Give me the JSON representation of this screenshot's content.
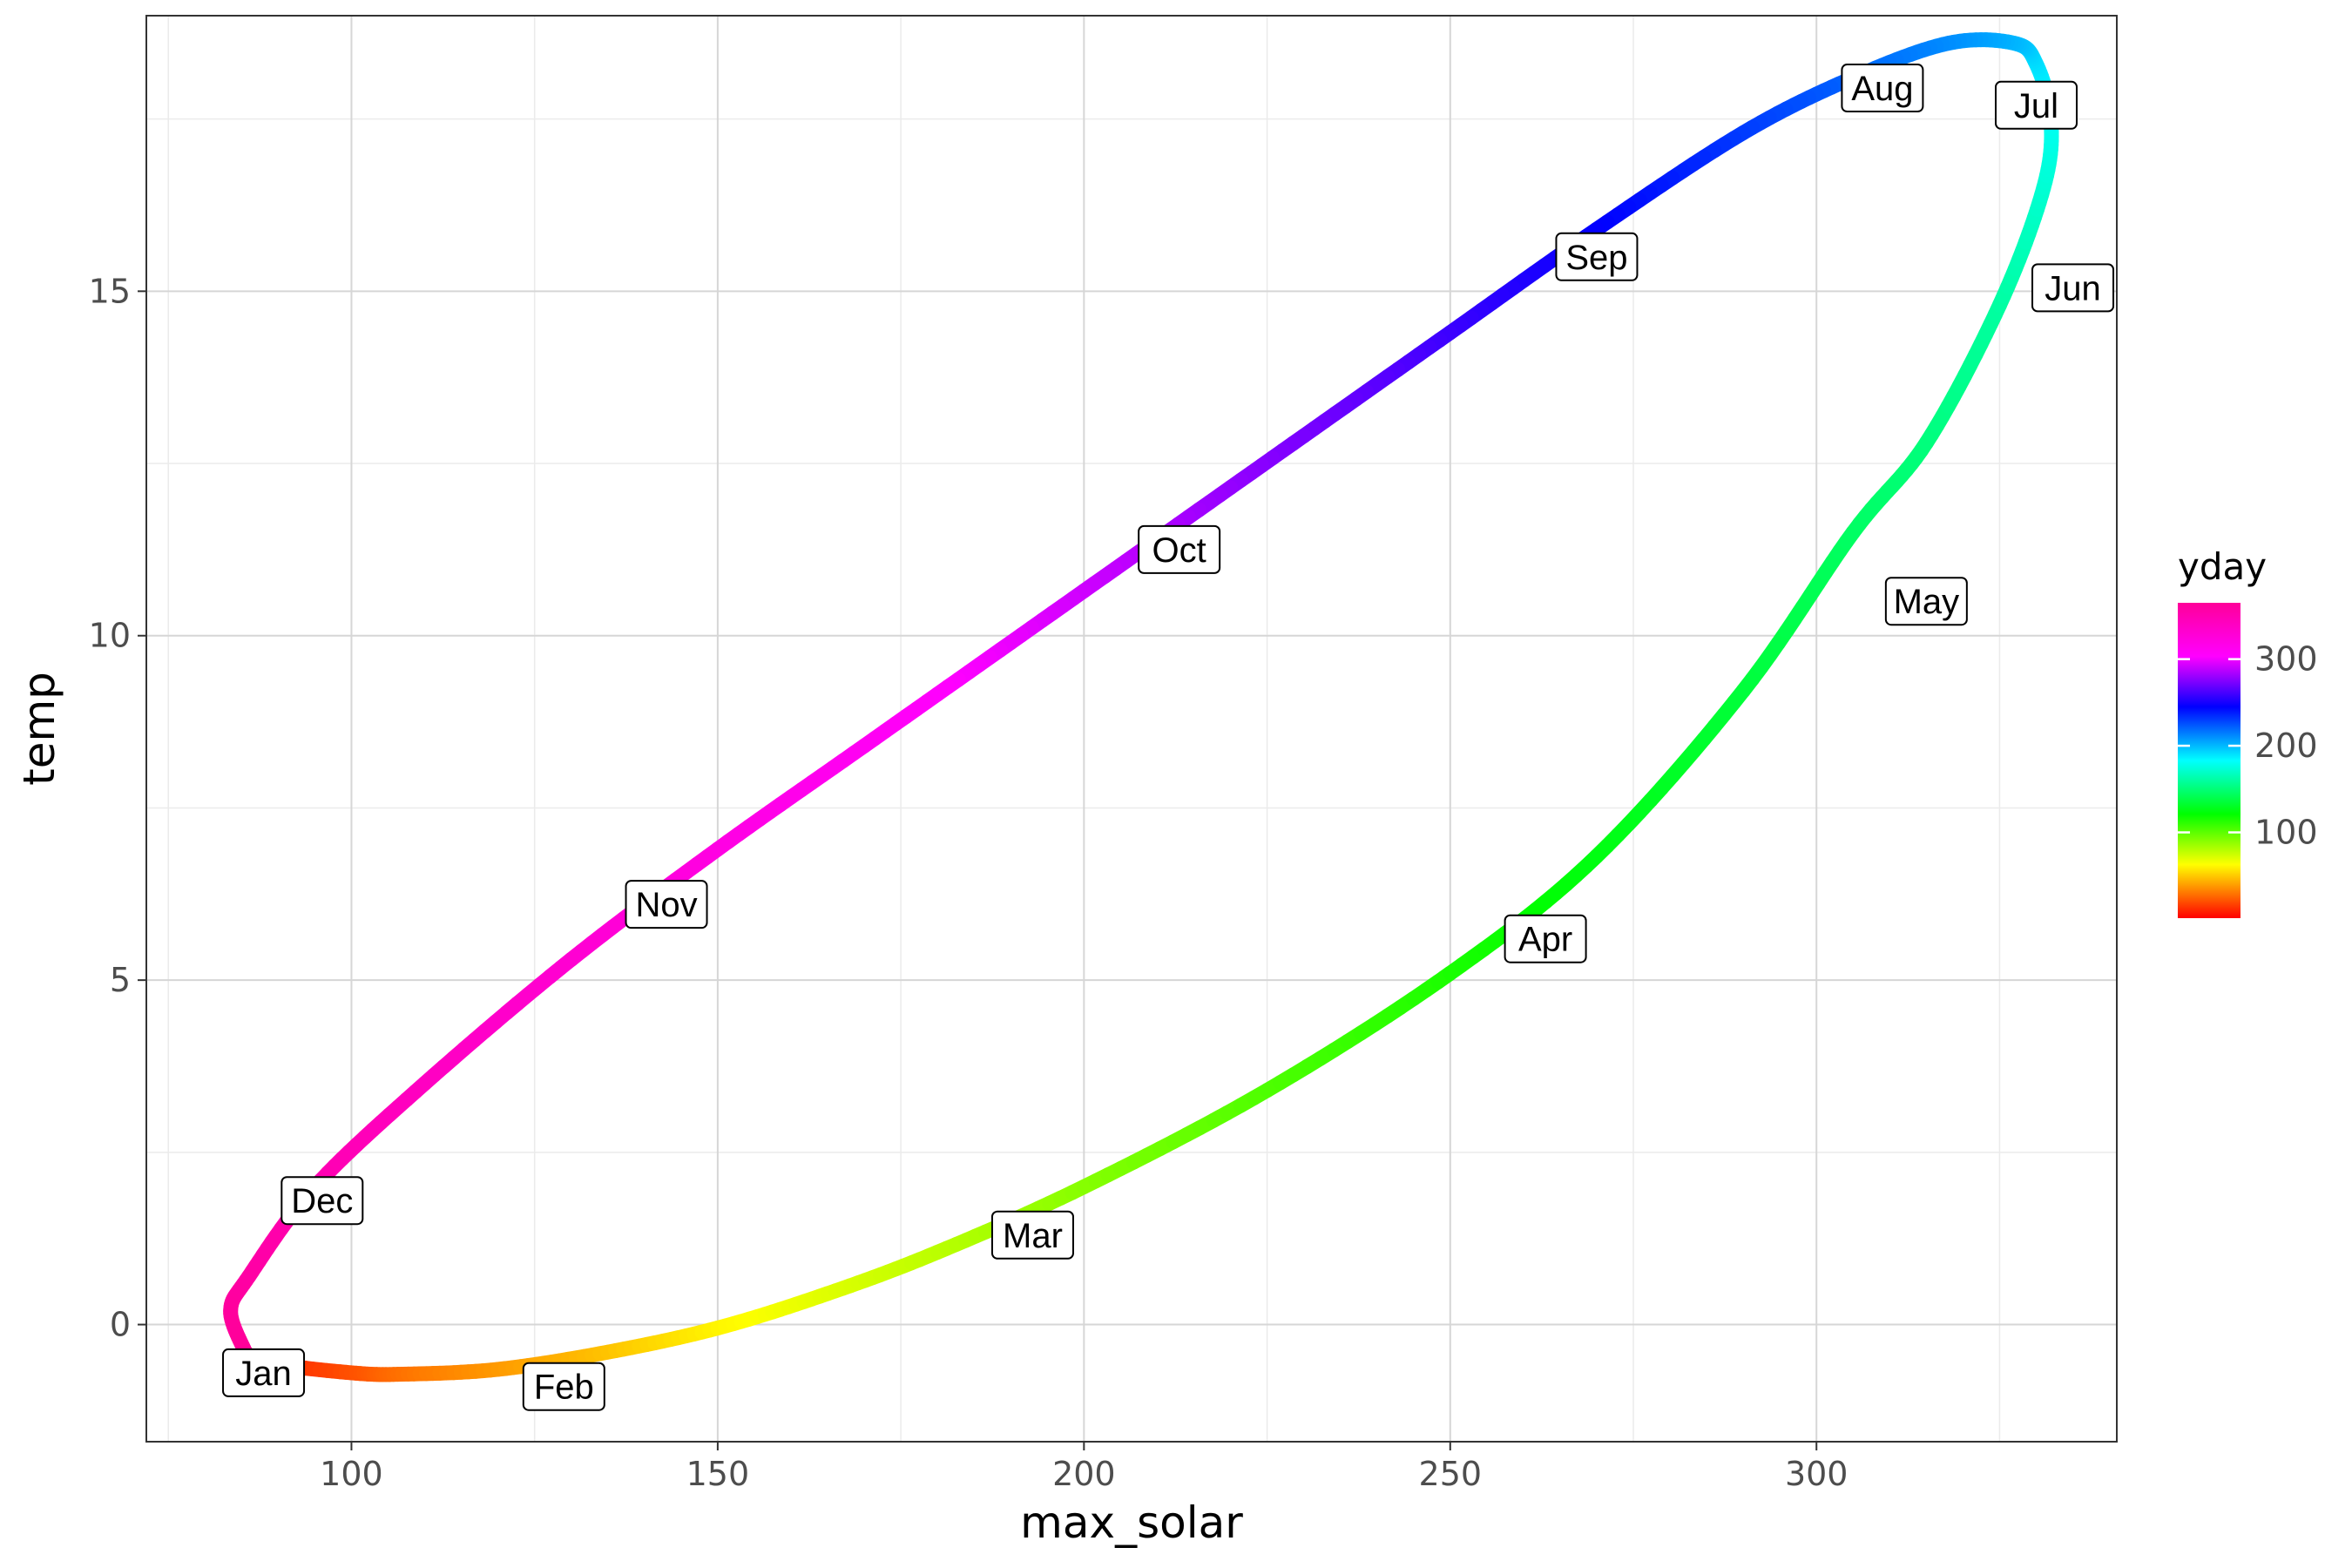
{
  "chart_data": {
    "type": "line",
    "title": "",
    "xlabel": "max_solar",
    "ylabel": "temp",
    "xlim": [
      72,
      341
    ],
    "ylim": [
      -1.7,
      19.0
    ],
    "x_ticks": [
      100,
      150,
      200,
      250,
      300
    ],
    "x_tick_labels": [
      "100",
      "150",
      "200",
      "250",
      "300"
    ],
    "y_ticks": [
      0,
      5,
      10,
      15
    ],
    "y_tick_labels": [
      "0",
      "5",
      "10",
      "15"
    ],
    "grid": true,
    "color_variable": "yday",
    "color_scale": "rainbow (red → yellow → green → cyan → blue → magenta)",
    "colorbar_range": [
      1,
      365
    ],
    "colorbar_ticks": [
      100,
      200,
      300
    ],
    "colorbar_tick_labels": [
      "100",
      "200",
      "300"
    ],
    "legend_position": "right",
    "series": [
      {
        "x": [
          85.5,
          88,
          100,
          107,
          120,
          135,
          150,
          165,
          180,
          200,
          225,
          250,
          270,
          290,
          305,
          315,
          325,
          331,
          332,
          330,
          327,
          318,
          305,
          290,
          270,
          250,
          230,
          210,
          190,
          170,
          150,
          130,
          110,
          95,
          86,
          83.5,
          85.5
        ],
        "y": [
          -0.4,
          -0.55,
          -0.7,
          -0.72,
          -0.65,
          -0.4,
          -0.05,
          0.45,
          1.05,
          2.0,
          3.4,
          5.1,
          6.8,
          9.2,
          11.5,
          12.8,
          14.8,
          16.5,
          17.5,
          18.3,
          18.6,
          18.6,
          18.1,
          17.3,
          15.9,
          14.4,
          12.9,
          11.4,
          9.9,
          8.4,
          6.9,
          5.3,
          3.5,
          2.0,
          0.7,
          0.2,
          -0.4
        ],
        "yday": [
          1,
          8,
          20,
          28,
          38,
          48,
          60,
          70,
          78,
          90,
          103,
          115,
          125,
          135,
          145,
          151,
          160,
          172,
          180,
          190,
          200,
          210,
          220,
          230,
          245,
          258,
          272,
          285,
          298,
          310,
          320,
          330,
          340,
          350,
          358,
          362,
          365
        ]
      }
    ],
    "annotations": [
      {
        "label": "Jan",
        "x": 88,
        "y": -0.7
      },
      {
        "label": "Feb",
        "x": 129,
        "y": -0.9
      },
      {
        "label": "Mar",
        "x": 193,
        "y": 1.3
      },
      {
        "label": "Apr",
        "x": 263,
        "y": 5.6
      },
      {
        "label": "May",
        "x": 315,
        "y": 10.5
      },
      {
        "label": "Jun",
        "x": 335,
        "y": 15.05
      },
      {
        "label": "Jul",
        "x": 330,
        "y": 17.7
      },
      {
        "label": "Aug",
        "x": 309,
        "y": 17.95
      },
      {
        "label": "Sep",
        "x": 270,
        "y": 15.5
      },
      {
        "label": "Oct",
        "x": 213,
        "y": 11.25
      },
      {
        "label": "Nov",
        "x": 143,
        "y": 6.1
      },
      {
        "label": "Dec",
        "x": 96,
        "y": 1.8
      }
    ]
  }
}
